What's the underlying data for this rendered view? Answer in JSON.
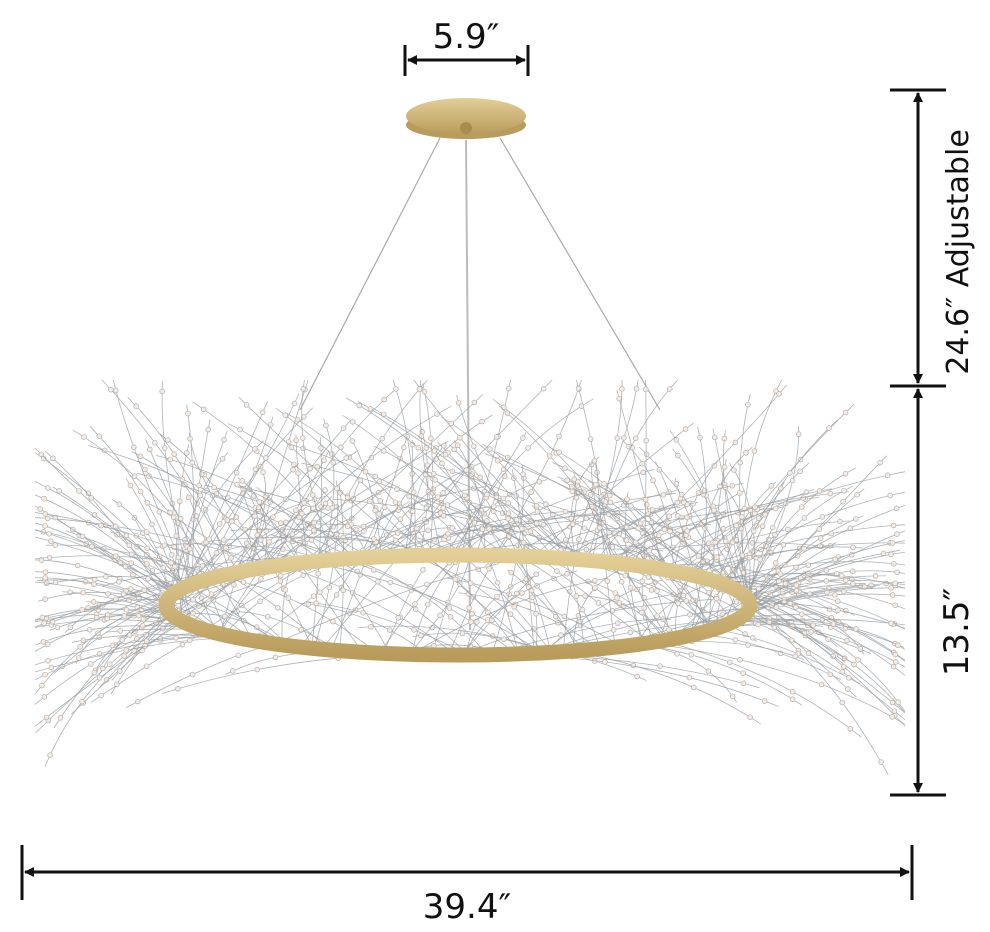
{
  "dimensions": {
    "canopy_width": "5.9″",
    "chain_length": "24.6″ Adjustable",
    "body_height": "13.5″",
    "overall_width": "39.4″"
  }
}
